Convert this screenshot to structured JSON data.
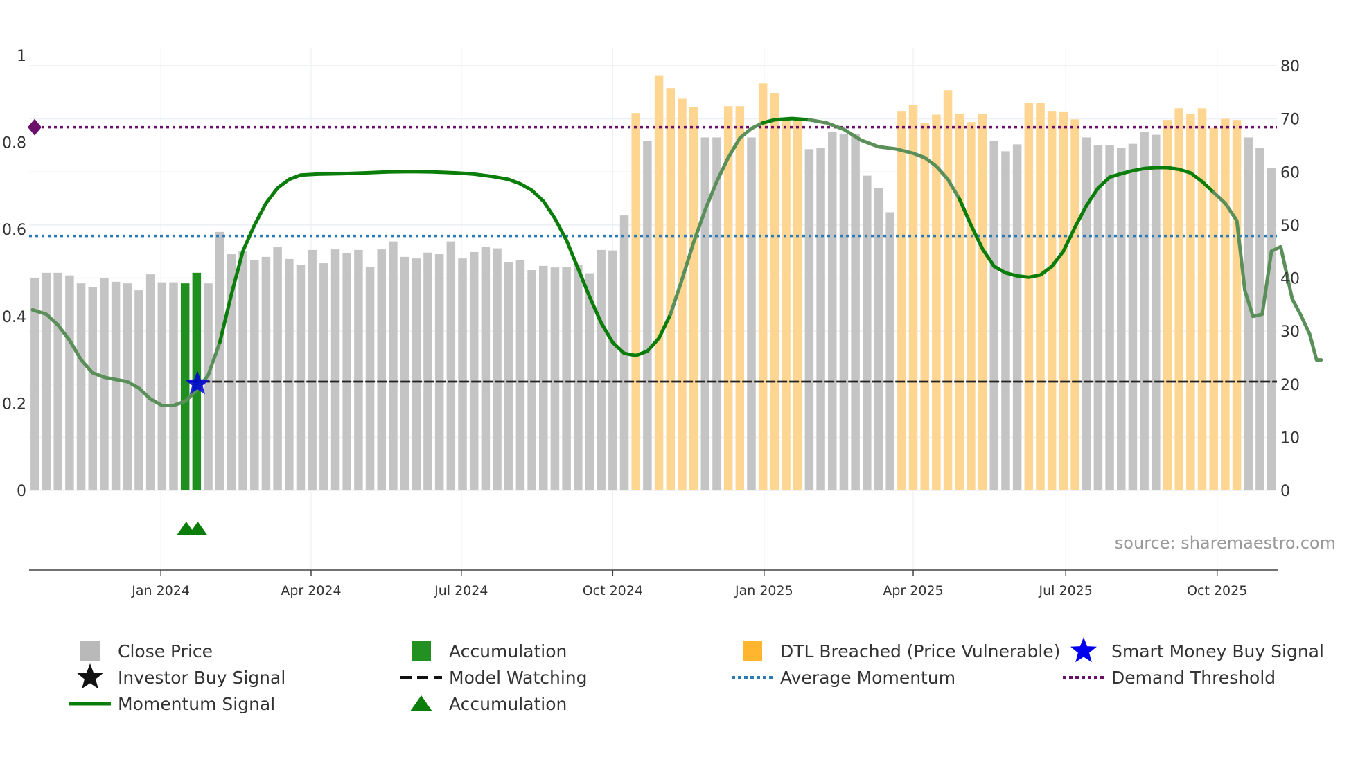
{
  "chart_data": {
    "type": "bar",
    "title": "",
    "source": "source: sharemaestro.com",
    "left_axis": {
      "ylim": [
        0,
        1
      ],
      "ticks": [
        "0",
        "0.2",
        "0.4",
        "0.6",
        "0.8",
        "1"
      ],
      "tick_values": [
        0,
        0.2,
        0.4,
        0.6,
        0.8,
        1
      ]
    },
    "right_axis": {
      "ylim": [
        0,
        80
      ],
      "ticks": [
        "0",
        "10",
        "20",
        "30",
        "40",
        "50",
        "60",
        "70",
        "80"
      ],
      "tick_values": [
        0,
        10,
        20,
        30,
        40,
        50,
        60,
        70,
        80
      ]
    },
    "x_axis": {
      "tick_labels": [
        "Jan 2024",
        "Apr 2024",
        "Jul 2024",
        "Oct 2024",
        "Jan 2025",
        "Apr 2025",
        "Jul 2025",
        "Oct 2025"
      ],
      "tick_weeks": [
        11.4,
        24.4,
        37.4,
        50.5,
        63.6,
        76.5,
        89.7,
        102.8
      ],
      "week_range": [
        0,
        108
      ],
      "start_week": "2023-10-02"
    },
    "close_price": [
      40,
      41,
      41,
      40.5,
      39,
      38.3,
      40,
      39.3,
      39,
      37.7,
      40.7,
      39.2,
      39.2,
      39,
      41,
      39,
      48.7,
      44.5,
      45,
      43.4,
      44,
      45.8,
      43.6,
      42.5,
      45.3,
      42.8,
      45.4,
      44.7,
      45.3,
      42.1,
      45.4,
      46.9,
      44,
      43.7,
      44.8,
      44.5,
      46.9,
      43.7,
      44.9,
      45.9,
      45.6,
      43,
      43.4,
      41.5,
      42.3,
      42,
      42.1,
      42.4,
      40.9,
      45.3,
      45.2,
      51.8,
      71.1,
      65.8,
      78.1,
      75.8,
      73.8,
      72.3,
      66.5,
      66.5,
      72.4,
      72.4,
      66.5,
      76.7,
      74.8,
      70,
      70,
      64.3,
      64.6,
      67.6,
      67.2,
      67.2,
      59.3,
      56.9,
      52.4,
      71.5,
      72.6,
      69.3,
      70.8,
      75.4,
      71,
      69.4,
      71,
      65.9,
      63.9,
      65.2,
      73,
      73,
      71.5,
      71.4,
      69.9,
      66.5,
      65,
      65,
      64.5,
      65.3,
      67.6,
      67,
      69.8,
      72,
      71,
      72,
      68.3,
      70,
      69.8,
      66.5,
      64.6,
      60.8
    ],
    "bar_category": [
      "close",
      "close",
      "close",
      "close",
      "close",
      "close",
      "close",
      "close",
      "close",
      "close",
      "close",
      "close",
      "close",
      "accumulation",
      "accumulation",
      "close",
      "close",
      "close",
      "close",
      "close",
      "close",
      "close",
      "close",
      "close",
      "close",
      "close",
      "close",
      "close",
      "close",
      "close",
      "close",
      "close",
      "close",
      "close",
      "close",
      "close",
      "close",
      "close",
      "close",
      "close",
      "close",
      "close",
      "close",
      "close",
      "close",
      "close",
      "close",
      "close",
      "close",
      "close",
      "close",
      "close",
      "dtl",
      "close",
      "dtl",
      "dtl",
      "dtl",
      "dtl",
      "close",
      "close",
      "dtl",
      "dtl",
      "close",
      "dtl",
      "dtl",
      "dtl",
      "dtl",
      "close",
      "close",
      "close",
      "close",
      "close",
      "close",
      "close",
      "close",
      "dtl",
      "dtl",
      "dtl",
      "dtl",
      "dtl",
      "dtl",
      "dtl",
      "dtl",
      "close",
      "close",
      "close",
      "dtl",
      "dtl",
      "dtl",
      "dtl",
      "dtl",
      "close",
      "close",
      "close",
      "close",
      "close",
      "close",
      "close",
      "dtl",
      "dtl",
      "dtl",
      "dtl",
      "dtl",
      "dtl",
      "dtl",
      "close",
      "close",
      "close"
    ],
    "momentum_signal": [
      [
        0.3,
        0.415
      ],
      [
        1.5,
        0.405
      ],
      [
        2.5,
        0.38
      ],
      [
        3.5,
        0.345
      ],
      [
        4.5,
        0.3
      ],
      [
        5.5,
        0.27
      ],
      [
        6.5,
        0.26
      ],
      [
        7.5,
        0.255
      ],
      [
        8.5,
        0.25
      ],
      [
        9.5,
        0.235
      ],
      [
        10.5,
        0.21
      ],
      [
        11.5,
        0.195
      ],
      [
        12.5,
        0.195
      ],
      [
        13.5,
        0.205
      ],
      [
        14.5,
        0.23
      ],
      [
        15.5,
        0.265
      ],
      [
        16.5,
        0.34
      ],
      [
        17.5,
        0.45
      ],
      [
        18.5,
        0.55
      ],
      [
        19.5,
        0.61
      ],
      [
        20.5,
        0.66
      ],
      [
        21.5,
        0.695
      ],
      [
        22.5,
        0.715
      ],
      [
        23.5,
        0.725
      ],
      [
        25,
        0.727
      ],
      [
        27,
        0.728
      ],
      [
        29,
        0.73
      ],
      [
        31,
        0.732
      ],
      [
        33,
        0.733
      ],
      [
        35,
        0.732
      ],
      [
        37,
        0.73
      ],
      [
        38.5,
        0.727
      ],
      [
        40,
        0.722
      ],
      [
        41.5,
        0.715
      ],
      [
        42.5,
        0.705
      ],
      [
        43.5,
        0.69
      ],
      [
        44.5,
        0.665
      ],
      [
        45.5,
        0.625
      ],
      [
        46.5,
        0.575
      ],
      [
        47.5,
        0.51
      ],
      [
        48.5,
        0.445
      ],
      [
        49.5,
        0.385
      ],
      [
        50.5,
        0.34
      ],
      [
        51.5,
        0.315
      ],
      [
        52.5,
        0.31
      ],
      [
        53.5,
        0.32
      ],
      [
        54.5,
        0.35
      ],
      [
        55.5,
        0.405
      ],
      [
        56.5,
        0.485
      ],
      [
        57.5,
        0.57
      ],
      [
        58.5,
        0.645
      ],
      [
        59.5,
        0.71
      ],
      [
        60.5,
        0.765
      ],
      [
        61.5,
        0.81
      ],
      [
        62.5,
        0.832
      ],
      [
        63.5,
        0.845
      ],
      [
        64.5,
        0.852
      ],
      [
        66,
        0.855
      ],
      [
        67.5,
        0.852
      ],
      [
        69,
        0.845
      ],
      [
        70.5,
        0.83
      ],
      [
        72,
        0.805
      ],
      [
        73.5,
        0.79
      ],
      [
        75,
        0.785
      ],
      [
        76.5,
        0.775
      ],
      [
        77.5,
        0.765
      ],
      [
        78.5,
        0.745
      ],
      [
        79.5,
        0.715
      ],
      [
        80.5,
        0.67
      ],
      [
        81.5,
        0.61
      ],
      [
        82.5,
        0.555
      ],
      [
        83.5,
        0.515
      ],
      [
        84.5,
        0.5
      ],
      [
        85.5,
        0.493
      ],
      [
        86.5,
        0.49
      ],
      [
        87.5,
        0.495
      ],
      [
        88.5,
        0.515
      ],
      [
        89.5,
        0.55
      ],
      [
        90.5,
        0.605
      ],
      [
        91.5,
        0.655
      ],
      [
        92.5,
        0.695
      ],
      [
        93.5,
        0.72
      ],
      [
        94.5,
        0.728
      ],
      [
        95.5,
        0.735
      ],
      [
        96.5,
        0.74
      ],
      [
        97.5,
        0.742
      ],
      [
        98.5,
        0.742
      ],
      [
        99.5,
        0.738
      ],
      [
        100.5,
        0.73
      ],
      [
        101.5,
        0.71
      ],
      [
        102.5,
        0.685
      ],
      [
        103.5,
        0.66
      ],
      [
        104.5,
        0.62
      ],
      [
        105.2,
        0.46
      ],
      [
        105.9,
        0.4
      ],
      [
        106.7,
        0.405
      ],
      [
        107.5,
        0.55
      ],
      [
        108.3,
        0.56
      ],
      [
        108.8,
        0.5
      ],
      [
        109.3,
        0.44
      ],
      [
        110,
        0.405
      ],
      [
        110.8,
        0.36
      ],
      [
        111.4,
        0.3
      ],
      [
        111.8,
        0.3
      ]
    ],
    "momentum_dimmed_ranges": [
      [
        0,
        16
      ],
      [
        55,
        63
      ],
      [
        67,
        80
      ],
      [
        102,
        112
      ]
    ],
    "average_momentum": 0.585,
    "demand_threshold": 0.835,
    "model_watching": 0.25,
    "model_watching_start_week": 13.8,
    "smart_money_buy_signal": [
      [
        14.8,
        0.245
      ]
    ],
    "accumulation_triangles_weeks": [
      13.6,
      14.6
    ],
    "colors": {
      "close": "#c4c4c4",
      "accumulation": "#1f8f1f",
      "dtl": "#ffd592",
      "momentum": "#0a7d0a",
      "momentum_dim": "#5a8f5a",
      "average": "#2a7ab5",
      "threshold": "#6b0f6b",
      "watching": "#222222",
      "smart_money": "#0000dd",
      "investor": "#111111"
    },
    "legend": [
      {
        "label": "Close Price",
        "symbol": "square",
        "color": "#b9b9b9"
      },
      {
        "label": "Accumulation",
        "symbol": "square",
        "color": "#229122"
      },
      {
        "label": "DTL Breached (Price Vulnerable)",
        "symbol": "square",
        "color": "#ffb52e"
      },
      {
        "label": "Smart Money Buy Signal",
        "symbol": "star",
        "color": "#0000ee"
      },
      {
        "label": "Investor Buy Signal",
        "symbol": "star",
        "color": "#111111"
      },
      {
        "label": "Model Watching",
        "symbol": "dash",
        "color": "#111111"
      },
      {
        "label": "Average Momentum",
        "symbol": "dot",
        "color": "#2a7ab5"
      },
      {
        "label": "Demand Threshold",
        "symbol": "dot",
        "color": "#6b0f6b"
      },
      {
        "label": "Momentum Signal",
        "symbol": "line",
        "color": "#0a7d0a"
      },
      {
        "label": "Accumulation",
        "symbol": "triangle",
        "color": "#0a7d0a"
      }
    ]
  }
}
